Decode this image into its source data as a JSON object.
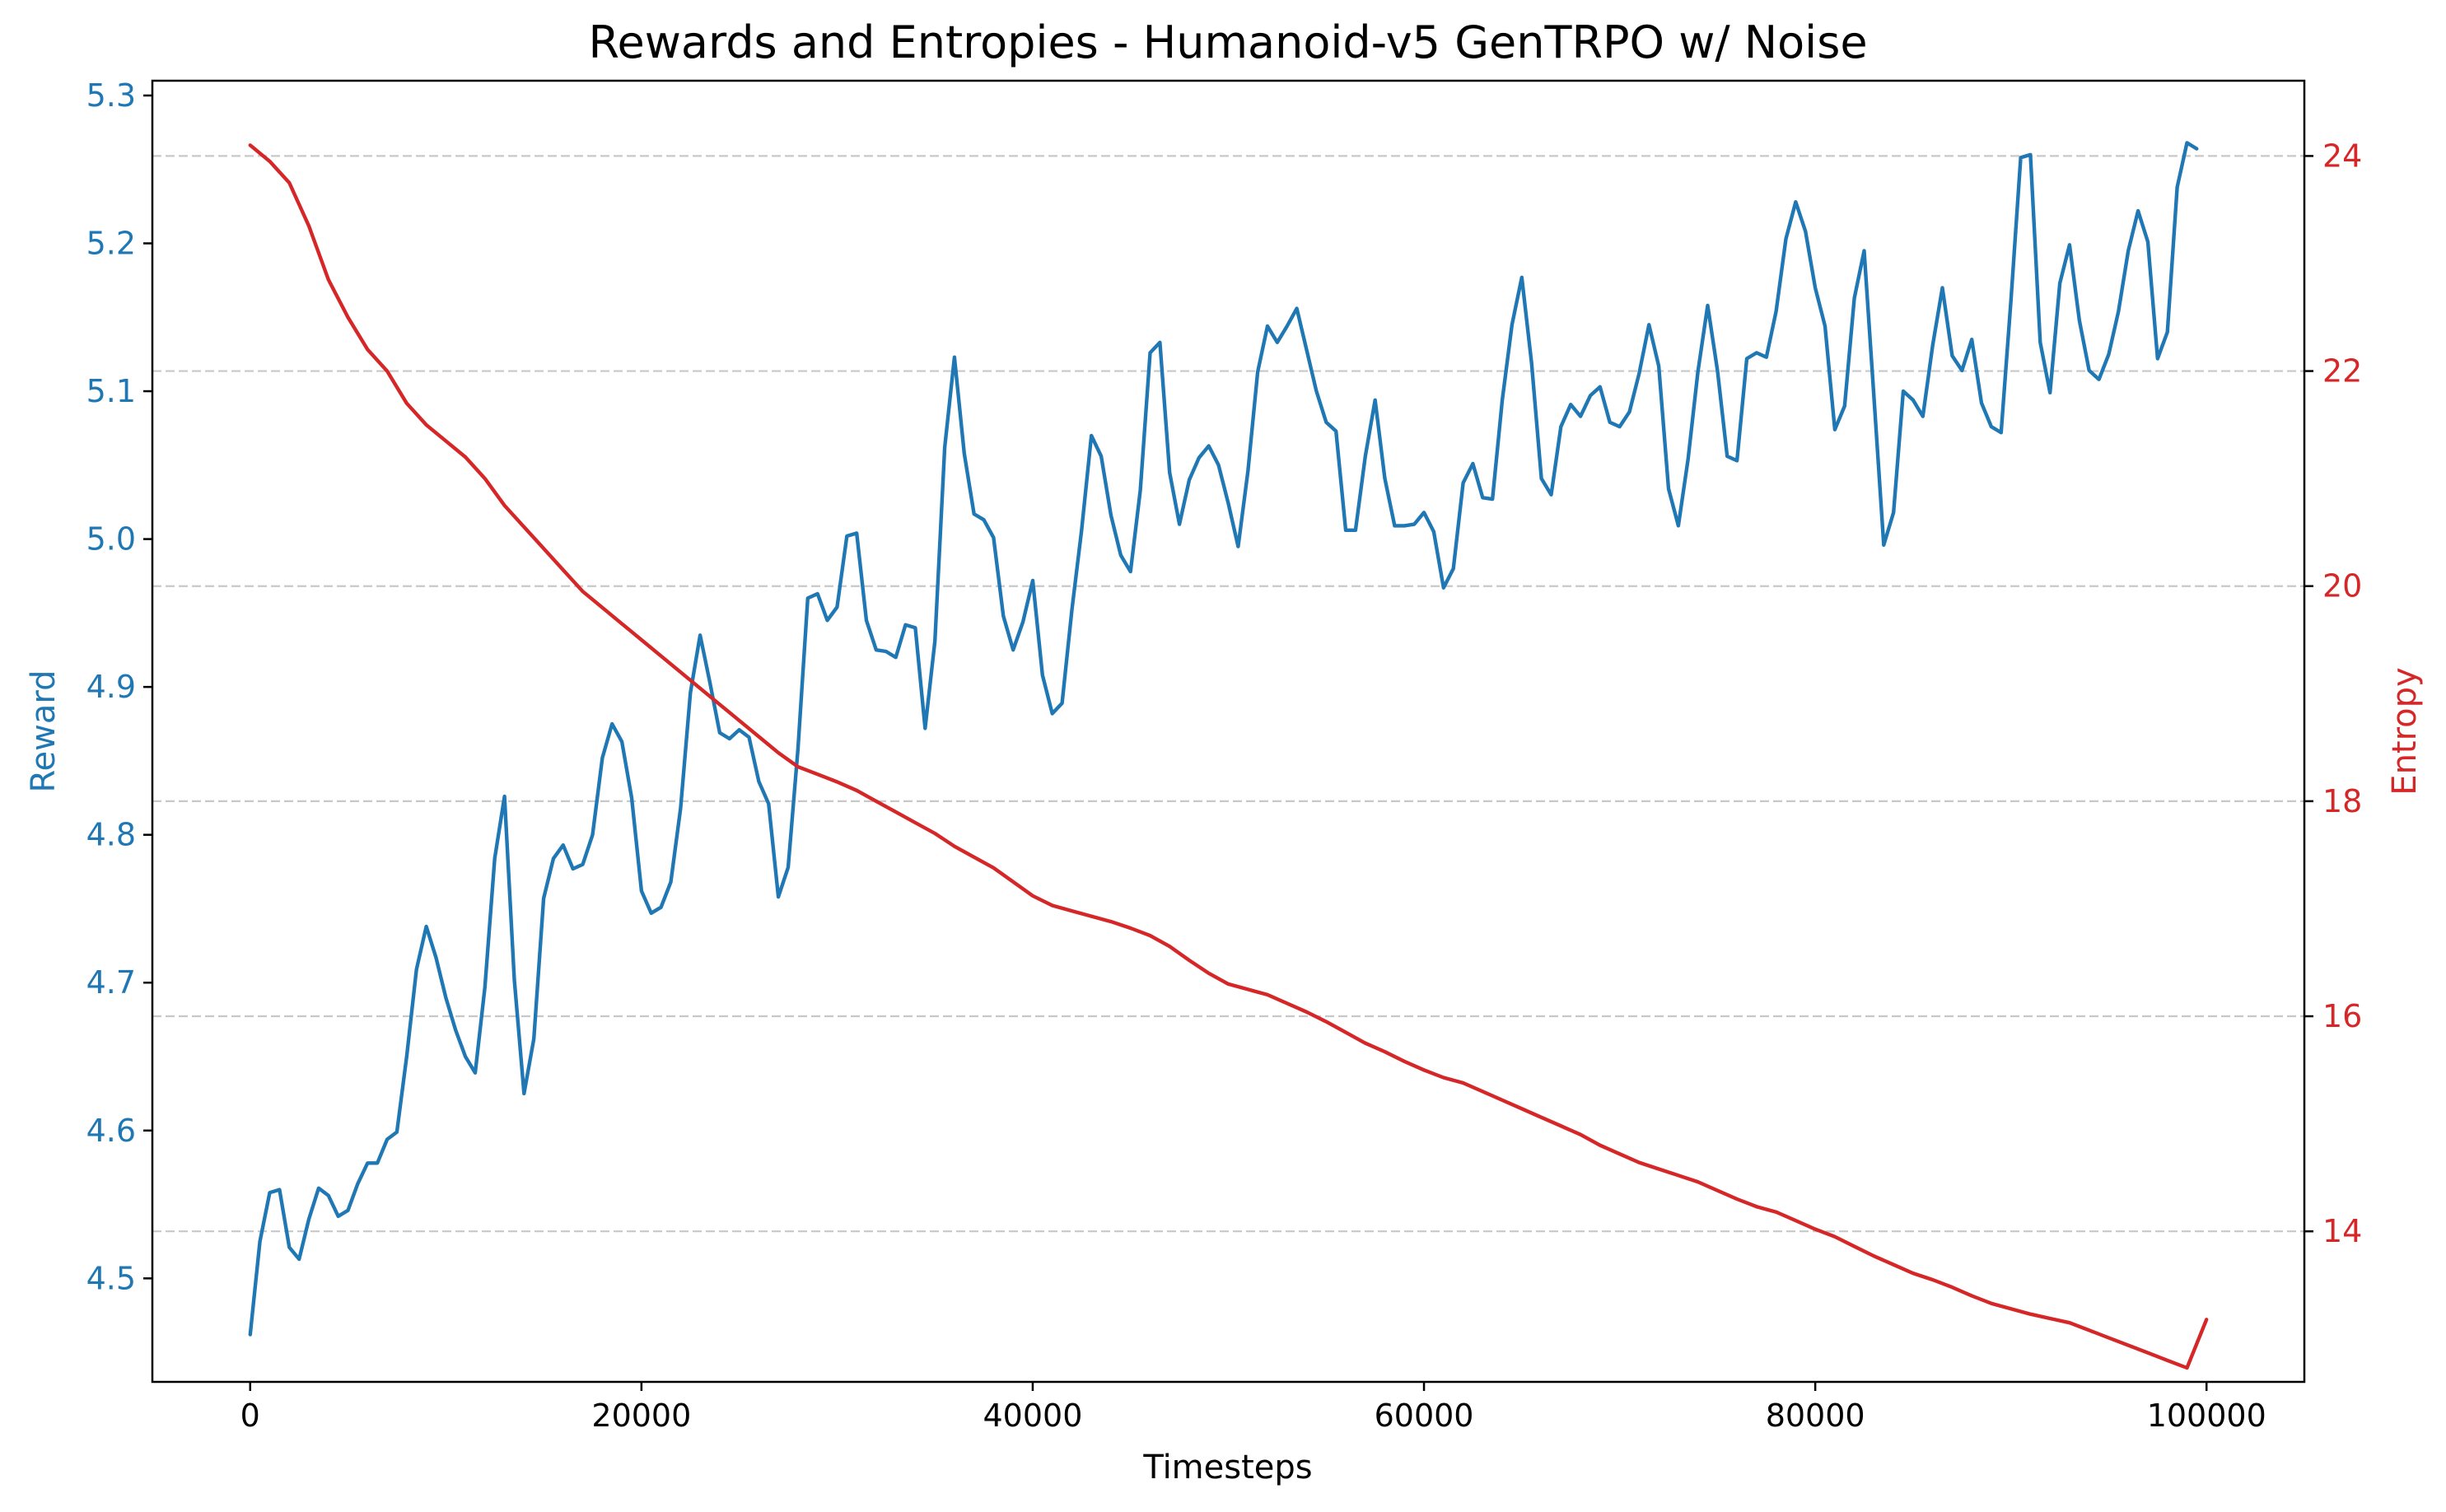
{
  "chart_data": {
    "type": "line",
    "title": "Rewards and Entropies - Humanoid-v5 GenTRPO w/ Noise",
    "xlabel": "Timesteps",
    "xlim": [
      -5000,
      105000
    ],
    "x_ticks": [
      0,
      20000,
      40000,
      60000,
      80000,
      100000
    ],
    "grid": "horizontal, right axis",
    "colors": {
      "reward": "#1f77b4",
      "entropy": "#d62728",
      "grid": "#c8c8c8"
    },
    "y_left": {
      "label": "Reward",
      "lim": [
        4.43,
        5.31
      ],
      "ticks": [
        4.5,
        4.6,
        4.7,
        4.8,
        4.9,
        5.0,
        5.1,
        5.2,
        5.3
      ],
      "tick_labels": [
        "4.5",
        "4.6",
        "4.7",
        "4.8",
        "4.9",
        "5.0",
        "5.1",
        "5.2",
        "5.3"
      ]
    },
    "y_right": {
      "label": "Entropy",
      "lim": [
        12.6,
        24.7
      ],
      "ticks": [
        14,
        16,
        18,
        20,
        22,
        24
      ],
      "tick_labels": [
        "14",
        "16",
        "18",
        "20",
        "22",
        "24"
      ]
    },
    "series": [
      {
        "name": "Reward",
        "axis": "left",
        "points": [
          [
            0,
            4.462
          ],
          [
            500,
            4.525
          ],
          [
            1000,
            4.558
          ],
          [
            1500,
            4.56
          ],
          [
            2000,
            4.521
          ],
          [
            2500,
            4.513
          ],
          [
            3000,
            4.54
          ],
          [
            3500,
            4.561
          ],
          [
            4000,
            4.556
          ],
          [
            4500,
            4.542
          ],
          [
            5000,
            4.546
          ],
          [
            5500,
            4.564
          ],
          [
            6000,
            4.578
          ],
          [
            6500,
            4.578
          ],
          [
            7000,
            4.594
          ],
          [
            7500,
            4.599
          ],
          [
            8000,
            4.65
          ],
          [
            8500,
            4.709
          ],
          [
            9000,
            4.738
          ],
          [
            9500,
            4.717
          ],
          [
            10000,
            4.69
          ],
          [
            10500,
            4.668
          ],
          [
            11000,
            4.65
          ],
          [
            11500,
            4.639
          ],
          [
            12000,
            4.697
          ],
          [
            12500,
            4.784
          ],
          [
            13000,
            4.826
          ],
          [
            13500,
            4.702
          ],
          [
            14000,
            4.625
          ],
          [
            14500,
            4.662
          ],
          [
            15000,
            4.757
          ],
          [
            15500,
            4.784
          ],
          [
            16000,
            4.793
          ],
          [
            16500,
            4.777
          ],
          [
            17000,
            4.78
          ],
          [
            17500,
            4.8
          ],
          [
            18000,
            4.852
          ],
          [
            18500,
            4.875
          ],
          [
            19000,
            4.863
          ],
          [
            19500,
            4.825
          ],
          [
            20000,
            4.762
          ],
          [
            20500,
            4.747
          ],
          [
            21000,
            4.751
          ],
          [
            21500,
            4.768
          ],
          [
            22000,
            4.818
          ],
          [
            22500,
            4.896
          ],
          [
            23000,
            4.935
          ],
          [
            23500,
            4.903
          ],
          [
            24000,
            4.869
          ],
          [
            24500,
            4.865
          ],
          [
            25000,
            4.871
          ],
          [
            25500,
            4.866
          ],
          [
            26000,
            4.836
          ],
          [
            26500,
            4.821
          ],
          [
            27000,
            4.758
          ],
          [
            27500,
            4.778
          ],
          [
            28000,
            4.858
          ],
          [
            28500,
            4.96
          ],
          [
            29000,
            4.963
          ],
          [
            29500,
            4.945
          ],
          [
            30000,
            4.954
          ],
          [
            30500,
            5.002
          ],
          [
            31000,
            5.004
          ],
          [
            31500,
            4.945
          ],
          [
            32000,
            4.925
          ],
          [
            32500,
            4.924
          ],
          [
            33000,
            4.92
          ],
          [
            33500,
            4.942
          ],
          [
            34000,
            4.94
          ],
          [
            34500,
            4.872
          ],
          [
            35000,
            4.931
          ],
          [
            35500,
            5.062
          ],
          [
            36000,
            5.123
          ],
          [
            36500,
            5.058
          ],
          [
            37000,
            5.017
          ],
          [
            37500,
            5.013
          ],
          [
            38000,
            5.001
          ],
          [
            38500,
            4.948
          ],
          [
            39000,
            4.925
          ],
          [
            39500,
            4.944
          ],
          [
            40000,
            4.972
          ],
          [
            40500,
            4.908
          ],
          [
            41000,
            4.882
          ],
          [
            41500,
            4.889
          ],
          [
            42000,
            4.952
          ],
          [
            42500,
            5.006
          ],
          [
            43000,
            5.07
          ],
          [
            43500,
            5.056
          ],
          [
            44000,
            5.016
          ],
          [
            44500,
            4.989
          ],
          [
            45000,
            4.978
          ],
          [
            45500,
            5.033
          ],
          [
            46000,
            5.126
          ],
          [
            46500,
            5.133
          ],
          [
            47000,
            5.045
          ],
          [
            47500,
            5.01
          ],
          [
            48000,
            5.04
          ],
          [
            48500,
            5.055
          ],
          [
            49000,
            5.063
          ],
          [
            49500,
            5.05
          ],
          [
            50000,
            5.024
          ],
          [
            50500,
            4.995
          ],
          [
            51000,
            5.046
          ],
          [
            51500,
            5.113
          ],
          [
            52000,
            5.144
          ],
          [
            52500,
            5.133
          ],
          [
            53000,
            5.144
          ],
          [
            53500,
            5.156
          ],
          [
            54000,
            5.128
          ],
          [
            54500,
            5.1
          ],
          [
            55000,
            5.079
          ],
          [
            55500,
            5.073
          ],
          [
            56000,
            5.006
          ],
          [
            56500,
            5.006
          ],
          [
            57000,
            5.056
          ],
          [
            57500,
            5.094
          ],
          [
            58000,
            5.041
          ],
          [
            58500,
            5.009
          ],
          [
            59000,
            5.009
          ],
          [
            59500,
            5.01
          ],
          [
            60000,
            5.018
          ],
          [
            60500,
            5.005
          ],
          [
            61000,
            4.967
          ],
          [
            61500,
            4.98
          ],
          [
            62000,
            5.038
          ],
          [
            62500,
            5.051
          ],
          [
            63000,
            5.028
          ],
          [
            63500,
            5.027
          ],
          [
            64000,
            5.094
          ],
          [
            64500,
            5.145
          ],
          [
            65000,
            5.177
          ],
          [
            65500,
            5.119
          ],
          [
            66000,
            5.041
          ],
          [
            66500,
            5.03
          ],
          [
            67000,
            5.076
          ],
          [
            67500,
            5.091
          ],
          [
            68000,
            5.083
          ],
          [
            68500,
            5.097
          ],
          [
            69000,
            5.103
          ],
          [
            69500,
            5.079
          ],
          [
            70000,
            5.076
          ],
          [
            70500,
            5.086
          ],
          [
            71000,
            5.112
          ],
          [
            71500,
            5.145
          ],
          [
            72000,
            5.117
          ],
          [
            72500,
            5.034
          ],
          [
            73000,
            5.009
          ],
          [
            73500,
            5.054
          ],
          [
            74000,
            5.113
          ],
          [
            74500,
            5.158
          ],
          [
            75000,
            5.114
          ],
          [
            75500,
            5.056
          ],
          [
            76000,
            5.053
          ],
          [
            76500,
            5.122
          ],
          [
            77000,
            5.126
          ],
          [
            77500,
            5.123
          ],
          [
            78000,
            5.154
          ],
          [
            78500,
            5.203
          ],
          [
            79000,
            5.228
          ],
          [
            79500,
            5.208
          ],
          [
            80000,
            5.17
          ],
          [
            80500,
            5.144
          ],
          [
            81000,
            5.074
          ],
          [
            81500,
            5.09
          ],
          [
            82000,
            5.163
          ],
          [
            82500,
            5.195
          ],
          [
            83000,
            5.096
          ],
          [
            83500,
            4.996
          ],
          [
            84000,
            5.018
          ],
          [
            84500,
            5.1
          ],
          [
            85000,
            5.094
          ],
          [
            85500,
            5.083
          ],
          [
            86000,
            5.131
          ],
          [
            86500,
            5.17
          ],
          [
            87000,
            5.124
          ],
          [
            87500,
            5.114
          ],
          [
            88000,
            5.135
          ],
          [
            88500,
            5.092
          ],
          [
            89000,
            5.076
          ],
          [
            89500,
            5.072
          ],
          [
            90000,
            5.161
          ],
          [
            90500,
            5.258
          ],
          [
            91000,
            5.26
          ],
          [
            91500,
            5.133
          ],
          [
            92000,
            5.099
          ],
          [
            92500,
            5.173
          ],
          [
            93000,
            5.199
          ],
          [
            93500,
            5.148
          ],
          [
            94000,
            5.114
          ],
          [
            94500,
            5.108
          ],
          [
            95000,
            5.125
          ],
          [
            95500,
            5.154
          ],
          [
            96000,
            5.195
          ],
          [
            96500,
            5.222
          ],
          [
            97000,
            5.201
          ],
          [
            97500,
            5.122
          ],
          [
            98000,
            5.14
          ],
          [
            98500,
            5.238
          ],
          [
            99000,
            5.268
          ],
          [
            99500,
            5.264
          ]
        ]
      },
      {
        "name": "Entropy",
        "axis": "right",
        "points": [
          [
            0,
            24.1
          ],
          [
            1000,
            23.95
          ],
          [
            2000,
            23.75
          ],
          [
            3000,
            23.35
          ],
          [
            4000,
            22.85
          ],
          [
            5000,
            22.5
          ],
          [
            6000,
            22.2
          ],
          [
            7000,
            22.0
          ],
          [
            8000,
            21.7
          ],
          [
            9000,
            21.5
          ],
          [
            10000,
            21.35
          ],
          [
            11000,
            21.2
          ],
          [
            12000,
            21.0
          ],
          [
            13000,
            20.75
          ],
          [
            14000,
            20.55
          ],
          [
            15000,
            20.35
          ],
          [
            16000,
            20.15
          ],
          [
            17000,
            19.95
          ],
          [
            18000,
            19.8
          ],
          [
            19000,
            19.65
          ],
          [
            20000,
            19.5
          ],
          [
            21000,
            19.35
          ],
          [
            22000,
            19.2
          ],
          [
            23000,
            19.05
          ],
          [
            24000,
            18.9
          ],
          [
            25000,
            18.75
          ],
          [
            26000,
            18.6
          ],
          [
            27000,
            18.45
          ],
          [
            28000,
            18.32
          ],
          [
            29000,
            18.25
          ],
          [
            30000,
            18.18
          ],
          [
            31000,
            18.1
          ],
          [
            32000,
            18.0
          ],
          [
            33000,
            17.9
          ],
          [
            34000,
            17.8
          ],
          [
            35000,
            17.7
          ],
          [
            36000,
            17.58
          ],
          [
            37000,
            17.48
          ],
          [
            38000,
            17.38
          ],
          [
            39000,
            17.25
          ],
          [
            40000,
            17.12
          ],
          [
            41000,
            17.03
          ],
          [
            42000,
            16.98
          ],
          [
            43000,
            16.93
          ],
          [
            44000,
            16.88
          ],
          [
            45000,
            16.82
          ],
          [
            46000,
            16.75
          ],
          [
            47000,
            16.65
          ],
          [
            48000,
            16.52
          ],
          [
            49000,
            16.4
          ],
          [
            50000,
            16.3
          ],
          [
            51000,
            16.25
          ],
          [
            52000,
            16.2
          ],
          [
            53000,
            16.12
          ],
          [
            54000,
            16.04
          ],
          [
            55000,
            15.95
          ],
          [
            56000,
            15.85
          ],
          [
            57000,
            15.75
          ],
          [
            58000,
            15.67
          ],
          [
            59000,
            15.58
          ],
          [
            60000,
            15.5
          ],
          [
            61000,
            15.43
          ],
          [
            62000,
            15.38
          ],
          [
            63000,
            15.3
          ],
          [
            64000,
            15.22
          ],
          [
            65000,
            15.14
          ],
          [
            66000,
            15.06
          ],
          [
            67000,
            14.98
          ],
          [
            68000,
            14.9
          ],
          [
            69000,
            14.8
          ],
          [
            70000,
            14.72
          ],
          [
            71000,
            14.64
          ],
          [
            72000,
            14.58
          ],
          [
            73000,
            14.52
          ],
          [
            74000,
            14.46
          ],
          [
            75000,
            14.38
          ],
          [
            76000,
            14.3
          ],
          [
            77000,
            14.23
          ],
          [
            78000,
            14.18
          ],
          [
            79000,
            14.1
          ],
          [
            80000,
            14.02
          ],
          [
            81000,
            13.95
          ],
          [
            82000,
            13.86
          ],
          [
            83000,
            13.77
          ],
          [
            84000,
            13.69
          ],
          [
            85000,
            13.61
          ],
          [
            86000,
            13.55
          ],
          [
            87000,
            13.48
          ],
          [
            88000,
            13.4
          ],
          [
            89000,
            13.33
          ],
          [
            90000,
            13.28
          ],
          [
            91000,
            13.23
          ],
          [
            92000,
            13.19
          ],
          [
            93000,
            13.15
          ],
          [
            94000,
            13.08
          ],
          [
            95000,
            13.01
          ],
          [
            96000,
            12.94
          ],
          [
            97000,
            12.87
          ],
          [
            98000,
            12.8
          ],
          [
            99000,
            12.73
          ],
          [
            100000,
            13.18
          ]
        ]
      }
    ]
  }
}
